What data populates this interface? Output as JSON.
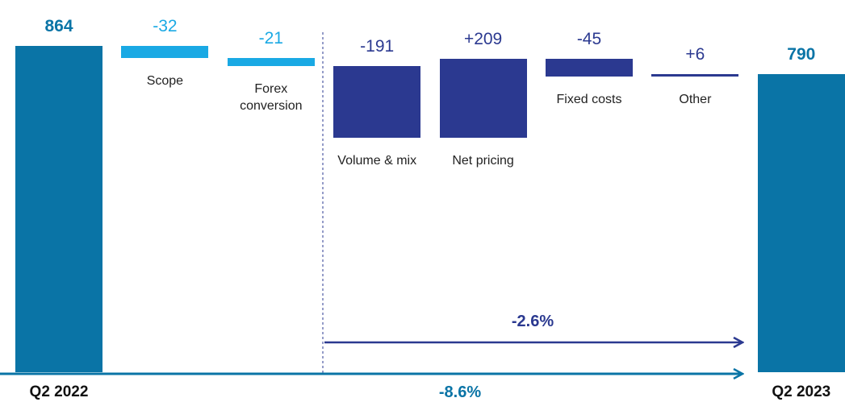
{
  "chart_data": {
    "type": "waterfall",
    "categories": [
      "Q2 2022",
      "Scope",
      "Forex conversion",
      "Volume & mix",
      "Net pricing",
      "Fixed costs",
      "Other",
      "Q2 2023"
    ],
    "values": [
      864,
      -32,
      -21,
      -191,
      209,
      -45,
      6,
      790
    ],
    "value_labels": [
      "864",
      "-32",
      "-21",
      "-191",
      "+209",
      "-45",
      "+6",
      "790"
    ],
    "colors": [
      "#0a74a6",
      "#1aa9e4",
      "#1aa9e4",
      "#2b3990",
      "#2b3990",
      "#2b3990",
      "#2b3990",
      "#0a74a6"
    ],
    "annotations": [
      {
        "text": "-2.6%",
        "color": "#2b3990"
      },
      {
        "text": "-8.6%",
        "color": "#0a74a6"
      }
    ]
  }
}
